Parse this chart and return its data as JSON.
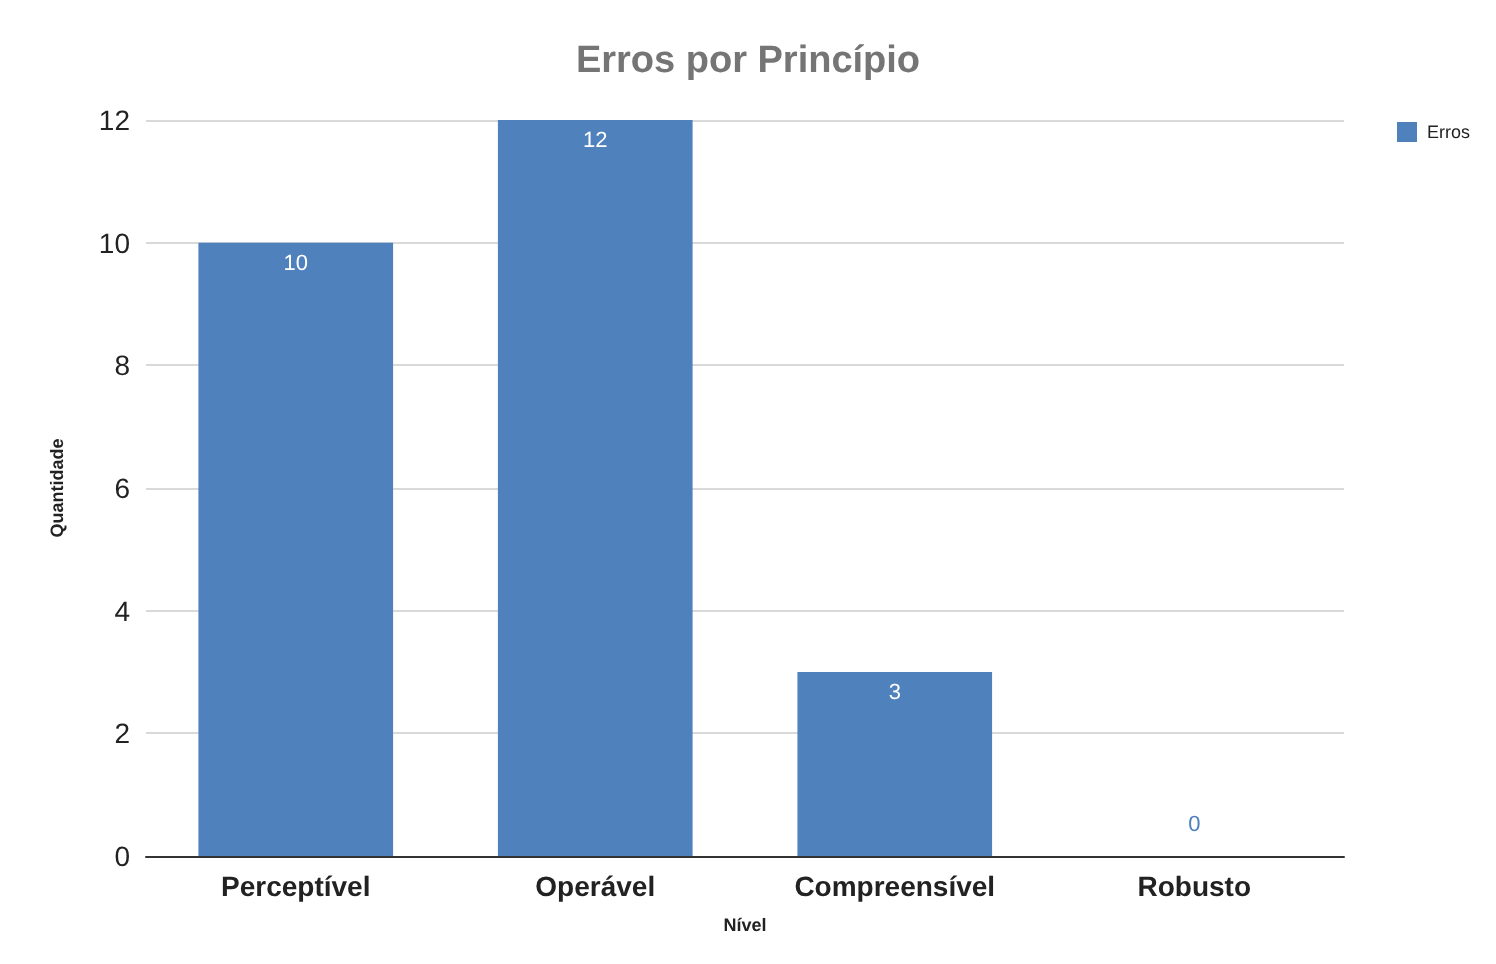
{
  "chart_data": {
    "type": "bar",
    "title": "Erros por Princípio",
    "xlabel": "Nível",
    "ylabel": "Quantidade",
    "categories": [
      "Perceptível",
      "Operável",
      "Compreensível",
      "Robusto"
    ],
    "series": [
      {
        "name": "Erros",
        "color": "#4f81bd",
        "values": [
          10,
          12,
          3,
          0
        ]
      }
    ],
    "ylim": [
      0,
      12
    ],
    "yticks": [
      0,
      2,
      4,
      6,
      8,
      10,
      12
    ],
    "grid": "y",
    "legend": "top right",
    "data_labels": true
  }
}
